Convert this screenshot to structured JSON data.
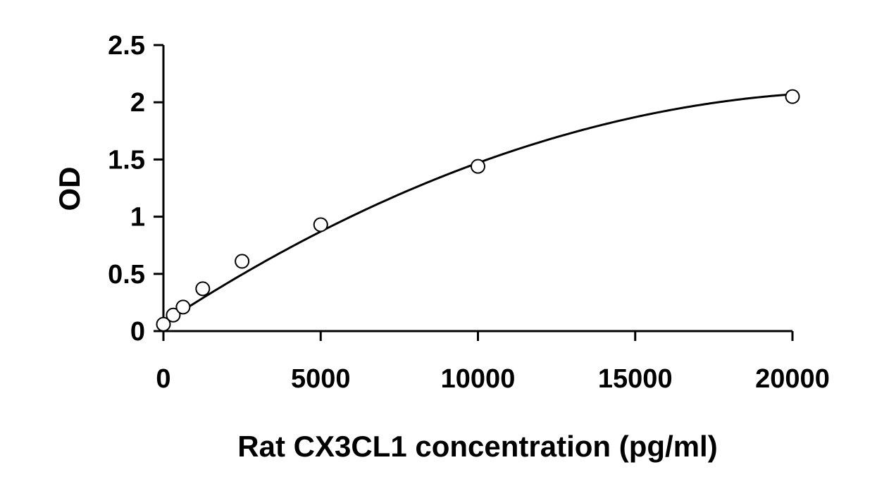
{
  "chart_data": {
    "type": "scatter",
    "title": "",
    "xlabel": "Rat CX3CL1 concentration (pg/ml)",
    "ylabel": "OD",
    "xlim": [
      0,
      20000
    ],
    "ylim": [
      0,
      2.5
    ],
    "x_ticks": [
      0,
      5000,
      10000,
      15000,
      20000
    ],
    "x_tick_labels": [
      "0",
      "5000",
      "10000",
      "15000",
      "20000"
    ],
    "y_ticks": [
      0,
      0.5,
      1,
      1.5,
      2,
      2.5
    ],
    "y_tick_labels": [
      "0",
      "0.5",
      "1",
      "1.5",
      "2",
      "2.5"
    ],
    "grid": false,
    "legend": "none",
    "series": [
      {
        "marker": "open-circle",
        "x": [
          0,
          312.5,
          625,
          1250,
          2500,
          5000,
          10000,
          20000
        ],
        "y": [
          0.06,
          0.14,
          0.21,
          0.37,
          0.61,
          0.93,
          1.44,
          2.05
        ]
      }
    ],
    "fit_curve": {
      "type": "polynomial-2",
      "coefficients": [
        0.07,
        0.00018,
        -4e-09
      ]
    },
    "colors": {
      "axis": "#000000",
      "marker_stroke": "#000000",
      "curve": "#000000"
    }
  }
}
